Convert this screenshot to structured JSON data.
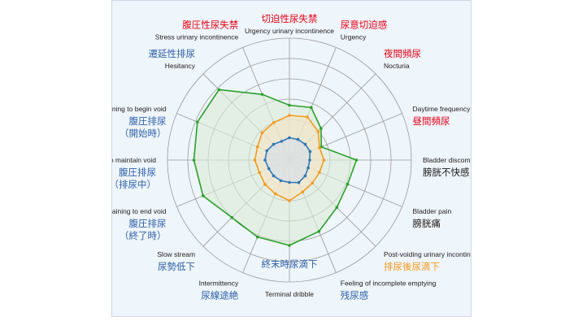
{
  "colors": {
    "frame_bg": "#eef5fb",
    "grid": "#9a9a9a",
    "red": "#e60012",
    "blue": "#2e5fa8",
    "orange": "#f39a1e",
    "black": "#1a1a1a",
    "green": "#2ca02c",
    "inner": "#2f77b4"
  },
  "chart_data": {
    "type": "radar",
    "grid_rings": 6,
    "rmax": 6,
    "axes": [
      {
        "en": "Urgency urinary incontinence",
        "ja": "切迫性尿失禁",
        "ja_color": "red"
      },
      {
        "en": "Urgency",
        "ja": "尿意切迫感",
        "ja_color": "red"
      },
      {
        "en": "Nocturia",
        "ja": "夜間頻尿",
        "ja_color": "red"
      },
      {
        "en": "Daytime frequency",
        "ja": "昼間頻尿",
        "ja_color": "red"
      },
      {
        "en": "Bladder discomfort",
        "ja": "膀胱不快感",
        "ja_color": "black"
      },
      {
        "en": "Bladder pain",
        "ja": "膀胱痛",
        "ja_color": "black"
      },
      {
        "en": "Post-voiding urinary incontinence",
        "ja": "排尿後尿滴下",
        "ja_color": "orange"
      },
      {
        "en": "Feeling of incomplete emptying",
        "ja": "残尿感",
        "ja_color": "blue"
      },
      {
        "en": "Terminal dribble",
        "ja": "終末時尿滴下",
        "ja_color": "blue"
      },
      {
        "en": "Intermittency",
        "ja": "尿線途絶",
        "ja_color": "blue"
      },
      {
        "en": "Slow stream",
        "ja": "尿勢低下",
        "ja_color": "blue"
      },
      {
        "en": "Straining to end void",
        "ja": "腹圧排尿\n（終了時）",
        "ja_color": "blue"
      },
      {
        "en": "Straining to maintain void",
        "ja": "腹圧排尿\n（排尿中）",
        "ja_color": "blue"
      },
      {
        "en": "Straining to begin void",
        "ja": "腹圧排尿\n（開始時）",
        "ja_color": "blue"
      },
      {
        "en": "Hesitancy",
        "ja": "遷延性排尿",
        "ja_color": "blue"
      },
      {
        "en": "Stress urinary incontinence",
        "ja": "腹圧性尿失禁",
        "ja_color": "red"
      }
    ],
    "series": [
      {
        "color": "green",
        "fill": "#dcebd6",
        "values": [
          2.7,
          2.8,
          2.2,
          1.7,
          3.3,
          3.1,
          3.3,
          3.8,
          4.2,
          4.1,
          4.0,
          4.6,
          4.7,
          4.9,
          4.9,
          3.5
        ]
      },
      {
        "color": "orange",
        "fill": "#f7e3c3",
        "values": [
          2.2,
          2.3,
          2.0,
          1.6,
          1.7,
          1.6,
          1.6,
          1.7,
          2.0,
          1.8,
          1.7,
          1.6,
          1.7,
          1.7,
          1.9,
          2.0
        ]
      },
      {
        "color": "inner",
        "fill": "#d2e0ef",
        "values": [
          1.1,
          1.1,
          1.1,
          1.1,
          1.0,
          1.0,
          1.1,
          1.2,
          1.1,
          1.1,
          1.1,
          1.1,
          1.2,
          1.2,
          1.1,
          1.0
        ]
      }
    ]
  }
}
